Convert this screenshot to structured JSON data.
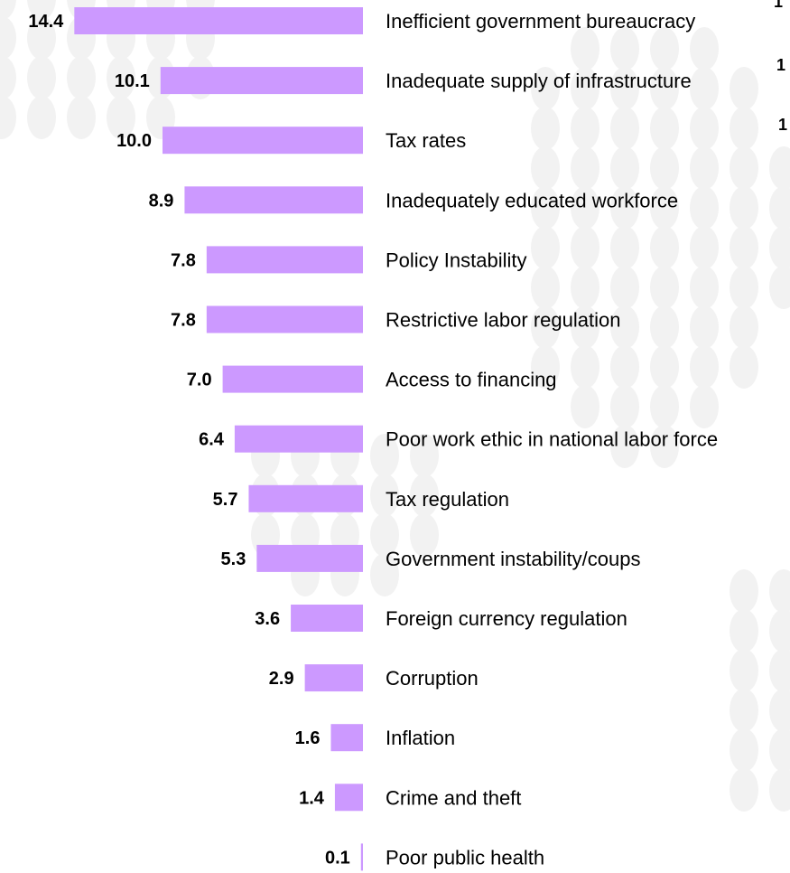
{
  "colors": {
    "bar": "#cc99ff",
    "background": "#ffffff",
    "pattern": "#f2f2f2",
    "text": "#000000"
  },
  "chart_data": {
    "type": "bar",
    "orientation": "horizontal",
    "categories": [
      "Inefficient government bureaucracy",
      "Inadequate supply of infrastructure",
      "Tax rates",
      "Inadequately educated workforce",
      "Policy Instability",
      "Restrictive labor regulation",
      "Access to financing",
      "Poor work ethic in national labor force",
      "Tax regulation",
      "Government instability/coups",
      "Foreign currency regulation",
      "Corruption",
      "Inflation",
      "Crime and theft",
      "Poor public health"
    ],
    "values": [
      14.4,
      10.1,
      10.0,
      8.9,
      7.8,
      7.8,
      7.0,
      6.4,
      5.7,
      5.3,
      3.6,
      2.9,
      1.6,
      1.4,
      0.1
    ],
    "value_labels": [
      "14.4",
      "10.1",
      "10.0",
      "8.9",
      "7.8",
      "7.8",
      "7.0",
      "6.4",
      "5.7",
      "5.3",
      "3.6",
      "2.9",
      "1.6",
      "1.4",
      "0.1"
    ],
    "bar_direction": "right-to-left",
    "clipped_right_text": [
      "1",
      "1",
      "1"
    ]
  }
}
